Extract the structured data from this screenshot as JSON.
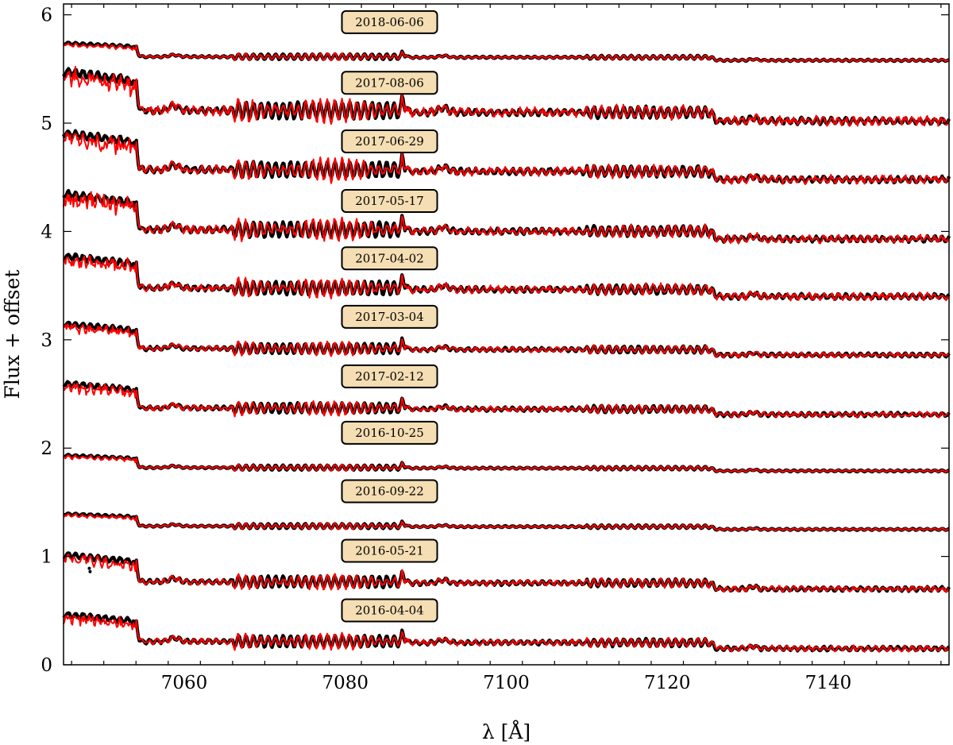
{
  "chart_data": {
    "type": "line",
    "xlabel": "λ [Å]",
    "ylabel": "Flux + offset",
    "xlim": [
      7045,
      7155
    ],
    "ylim": [
      0,
      6.1
    ],
    "xticks": [
      7060,
      7080,
      7100,
      7120,
      7140
    ],
    "yticks": [
      0,
      1,
      2,
      3,
      4,
      5,
      6
    ],
    "grid": false,
    "series_styles": [
      {
        "role": "observed",
        "color": "#000000",
        "style": "thick dotted markers"
      },
      {
        "role": "model",
        "color": "#ff0000",
        "style": "line"
      }
    ],
    "spectra": [
      {
        "label": "2018-06-06",
        "offset": 5.58,
        "amp": 0.55,
        "noise": 0.18
      },
      {
        "label": "2017-08-06",
        "offset": 5.02,
        "amp": 1.6,
        "noise": 1.0
      },
      {
        "label": "2017-06-29",
        "offset": 4.48,
        "amp": 1.5,
        "noise": 0.9
      },
      {
        "label": "2017-05-17",
        "offset": 3.93,
        "amp": 1.45,
        "noise": 0.9
      },
      {
        "label": "2017-04-02",
        "offset": 3.4,
        "amp": 1.3,
        "noise": 0.8
      },
      {
        "label": "2017-03-04",
        "offset": 2.86,
        "amp": 1.0,
        "noise": 0.5
      },
      {
        "label": "2017-02-12",
        "offset": 2.31,
        "amp": 1.0,
        "noise": 0.55
      },
      {
        "label": "2016-10-25",
        "offset": 1.79,
        "amp": 0.5,
        "noise": 0.15
      },
      {
        "label": "2016-09-22",
        "offset": 1.25,
        "amp": 0.5,
        "noise": 0.15
      },
      {
        "label": "2016-05-21",
        "offset": 0.7,
        "amp": 1.1,
        "noise": 0.6
      },
      {
        "label": "2016-04-04",
        "offset": 0.15,
        "amp": 1.1,
        "noise": 0.6
      }
    ],
    "label_box_color": "#f5deb3",
    "label_x": 7085.5
  }
}
